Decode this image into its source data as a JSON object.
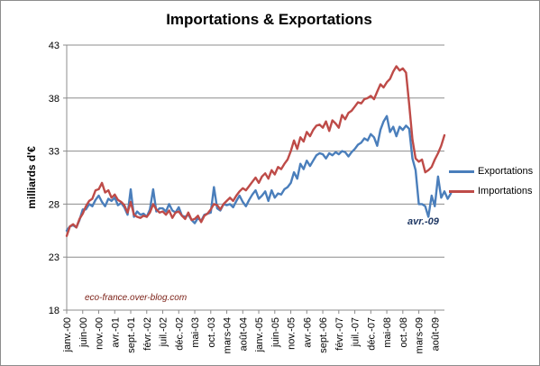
{
  "title": "Importations  & Exportations",
  "source_note": "eco-france.over-blog.com",
  "annotation": "avr.-09",
  "colors": {
    "exports": "#4a7ebb",
    "imports": "#be4b48",
    "grid": "#8c8c8c",
    "axis": "#8c8c8c"
  },
  "chart_data": {
    "type": "line",
    "title": "Importations  & Exportations",
    "ylabel": "milliards d'€",
    "xlabel": "",
    "ylim": [
      18,
      43
    ],
    "yticks": [
      18,
      23,
      28,
      33,
      38,
      43
    ],
    "grid": "horizontal",
    "legend_position": "right",
    "x_start": "janv.-00",
    "x_end": "nov.-09",
    "x_count": 119,
    "xtick_labels": [
      "janv.-00",
      "juin-00",
      "nov.-00",
      "avr.-01",
      "sept.-01",
      "févr.-02",
      "juil.-02",
      "déc.-02",
      "mai-03",
      "oct.-03",
      "mars-04",
      "août-04",
      "janv.-05",
      "juin-05",
      "nov.-05",
      "avr.-06",
      "sept.-06",
      "févr.-07",
      "juil.-07",
      "déc.-07",
      "mai-08",
      "oct.-08",
      "mars-09",
      "août-09"
    ],
    "xtick_positions": [
      0,
      5,
      10,
      15,
      20,
      25,
      30,
      35,
      40,
      45,
      50,
      55,
      60,
      65,
      70,
      75,
      80,
      85,
      90,
      95,
      100,
      105,
      110,
      115
    ],
    "series": [
      {
        "name": "Exportations",
        "values": [
          25.5,
          25.9,
          26.0,
          25.8,
          26.5,
          27.5,
          27.5,
          28.0,
          27.8,
          28.4,
          28.8,
          28.2,
          27.8,
          28.5,
          28.3,
          28.6,
          27.9,
          28.1,
          27.7,
          27.0,
          29.4,
          26.8,
          27.3,
          27.0,
          27.1,
          26.8,
          27.5,
          29.4,
          27.3,
          27.6,
          27.6,
          27.3,
          28.0,
          27.4,
          27.2,
          27.7,
          26.9,
          26.8,
          27.0,
          26.5,
          26.2,
          26.7,
          26.4,
          27.0,
          27.1,
          27.2,
          29.6,
          27.6,
          27.4,
          28.0,
          27.9,
          28.0,
          27.7,
          28.3,
          28.8,
          28.2,
          27.8,
          28.4,
          28.9,
          29.3,
          28.5,
          28.8,
          29.2,
          28.3,
          29.3,
          28.6,
          29.0,
          28.9,
          29.4,
          29.6,
          30.0,
          31.0,
          30.4,
          31.8,
          31.3,
          32.1,
          31.6,
          32.1,
          32.6,
          32.8,
          32.7,
          32.3,
          32.8,
          32.6,
          32.9,
          32.7,
          33.0,
          32.9,
          32.5,
          32.9,
          33.2,
          33.6,
          33.8,
          34.2,
          34.0,
          34.6,
          34.3,
          33.5,
          35.0,
          35.8,
          36.3,
          34.8,
          35.3,
          34.4,
          35.3,
          35.0,
          35.4,
          35.1,
          32.3,
          31.2,
          28.0,
          28.0,
          27.8,
          26.8,
          28.8,
          27.8,
          30.6,
          28.6,
          29.2,
          28.5,
          29.0
        ]
      },
      {
        "name": "Importations",
        "values": [
          25.0,
          25.9,
          26.1,
          25.8,
          26.6,
          27.1,
          27.8,
          28.3,
          28.5,
          29.3,
          29.4,
          30.0,
          29.1,
          29.3,
          28.6,
          28.9,
          28.4,
          28.2,
          27.9,
          27.2,
          28.2,
          27.0,
          26.8,
          26.7,
          26.9,
          26.8,
          27.2,
          28.0,
          27.5,
          27.2,
          27.3,
          27.0,
          27.4,
          26.7,
          27.2,
          27.3,
          26.9,
          26.6,
          27.2,
          26.5,
          26.6,
          26.9,
          26.3,
          26.9,
          27.1,
          27.5,
          28.0,
          27.9,
          27.5,
          28.0,
          28.3,
          28.6,
          28.3,
          28.8,
          29.2,
          29.5,
          29.3,
          29.7,
          30.1,
          30.5,
          30.0,
          30.6,
          30.9,
          30.4,
          31.2,
          30.8,
          31.5,
          31.3,
          31.8,
          32.2,
          33.0,
          34.0,
          33.2,
          34.3,
          33.9,
          34.8,
          34.4,
          35.0,
          35.4,
          35.5,
          35.2,
          35.8,
          34.9,
          35.9,
          35.6,
          35.2,
          36.4,
          36.0,
          36.6,
          36.8,
          37.2,
          37.6,
          37.5,
          37.9,
          38.0,
          38.2,
          37.9,
          38.6,
          39.3,
          39.0,
          39.5,
          39.8,
          40.5,
          41.0,
          40.6,
          40.8,
          40.4,
          37.4,
          34.1,
          32.3,
          32.0,
          32.2,
          31.0,
          31.2,
          31.5,
          32.2,
          32.8,
          33.5,
          34.5
        ]
      }
    ]
  }
}
